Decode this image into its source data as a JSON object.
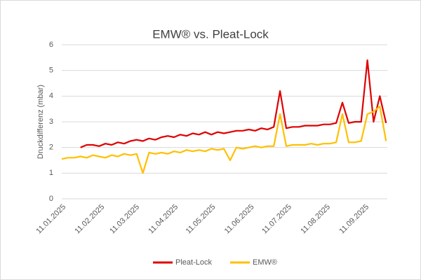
{
  "chart_data": {
    "type": "line",
    "title": "EMW® vs. Pleat-Lock",
    "y_label": "Druckdifferenz (mbar)",
    "x": [
      "11.01.2025",
      "16.01.2025",
      "21.01.2025",
      "26.01.2025",
      "31.01.2025",
      "05.02.2025",
      "10.02.2025",
      "15.02.2025",
      "20.02.2025",
      "25.02.2025",
      "02.03.2025",
      "07.03.2025",
      "12.03.2025",
      "17.03.2025",
      "22.03.2025",
      "27.03.2025",
      "01.04.2025",
      "06.04.2025",
      "11.04.2025",
      "16.04.2025",
      "21.04.2025",
      "26.04.2025",
      "01.05.2025",
      "06.05.2025",
      "11.05.2025",
      "16.05.2025",
      "21.05.2025",
      "26.05.2025",
      "31.05.2025",
      "05.06.2025",
      "10.06.2025",
      "15.06.2025",
      "20.06.2025",
      "25.06.2025",
      "30.06.2025",
      "05.07.2025",
      "10.07.2025",
      "15.07.2025",
      "20.07.2025",
      "25.07.2025",
      "30.07.2025",
      "04.08.2025",
      "09.08.2025",
      "14.08.2025",
      "19.08.2025",
      "24.08.2025",
      "29.08.2025",
      "03.09.2025",
      "08.09.2025",
      "13.09.2025",
      "18.09.2025",
      "23.09.2025",
      "28.09.2025"
    ],
    "series": [
      {
        "name": "Pleat-Lock",
        "color": "#e00000",
        "values": [
          null,
          null,
          null,
          2.0,
          2.1,
          2.1,
          2.05,
          2.15,
          2.1,
          2.2,
          2.15,
          2.25,
          2.3,
          2.25,
          2.35,
          2.3,
          2.4,
          2.45,
          2.4,
          2.5,
          2.45,
          2.55,
          2.5,
          2.6,
          2.5,
          2.6,
          2.55,
          2.6,
          2.65,
          2.65,
          2.7,
          2.65,
          2.75,
          2.7,
          2.8,
          4.2,
          2.75,
          2.8,
          2.8,
          2.85,
          2.85,
          2.85,
          2.9,
          2.9,
          2.95,
          3.75,
          2.95,
          3.0,
          3.0,
          5.4,
          3.0,
          4.0,
          2.95
        ]
      },
      {
        "name": "EMW®",
        "color": "#ffc000",
        "values": [
          1.55,
          1.6,
          1.6,
          1.65,
          1.6,
          1.7,
          1.65,
          1.6,
          1.7,
          1.65,
          1.75,
          1.7,
          1.75,
          1.0,
          1.8,
          1.75,
          1.8,
          1.75,
          1.85,
          1.8,
          1.9,
          1.85,
          1.9,
          1.85,
          1.95,
          1.9,
          1.95,
          1.5,
          2.0,
          1.95,
          2.0,
          2.05,
          2.0,
          2.05,
          2.05,
          3.3,
          2.05,
          2.1,
          2.1,
          2.1,
          2.15,
          2.1,
          2.15,
          2.15,
          2.2,
          3.3,
          2.2,
          2.2,
          2.25,
          3.3,
          3.4,
          3.6,
          2.25
        ]
      }
    ],
    "xlim": [
      "11.01.2025",
      "29.09.2025"
    ],
    "xticks": [
      "11.01.2025",
      "11.02.2025",
      "11.03.2025",
      "11.04.2025",
      "11.05.2025",
      "11.06.2025",
      "11.07.2025",
      "11.08.2025",
      "11.09.2025"
    ],
    "ylim": [
      0,
      6
    ],
    "yticks": [
      0,
      1,
      2,
      3,
      4,
      5,
      6
    ],
    "grid": true,
    "legend": "bottom"
  }
}
